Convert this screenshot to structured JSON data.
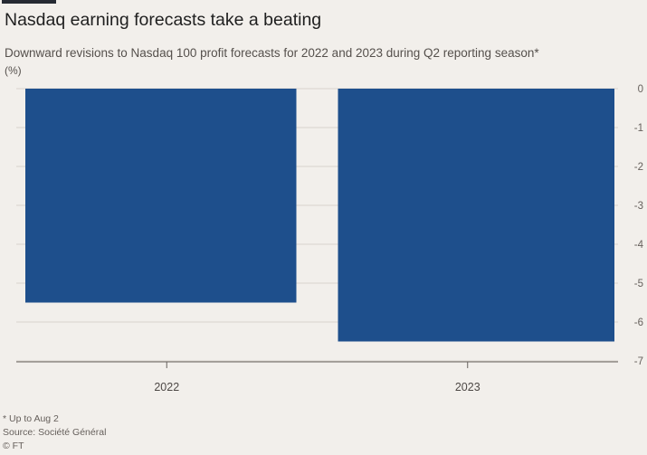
{
  "header": {
    "title": "Nasdaq earning forecasts take a beating",
    "subtitle": "Downward revisions to Nasdaq 100 profit forecasts for 2022 and 2023 during Q2 reporting season*",
    "unit": "(%)"
  },
  "footer": {
    "note": "* Up to Aug 2",
    "source": "Source: Société Général",
    "copyright": "© FT"
  },
  "colors": {
    "bar": "#1e4f8c",
    "grid": "#d8d3cd",
    "axis": "#66605c",
    "background": "#f2efeb"
  },
  "chart_data": {
    "type": "bar",
    "categories": [
      "2022",
      "2023"
    ],
    "values": [
      -5.5,
      -6.5
    ],
    "title": "Nasdaq earning forecasts take a beating",
    "subtitle": "Downward revisions to Nasdaq 100 profit forecasts for 2022 and 2023 during Q2 reporting season*",
    "xlabel": "",
    "ylabel": "(%)",
    "ylim": [
      -7,
      0
    ],
    "yticks": [
      0,
      -1,
      -2,
      -3,
      -4,
      -5,
      -6,
      -7
    ],
    "ytick_labels": [
      "0",
      "-1",
      "-2",
      "-3",
      "-4",
      "-5",
      "-6",
      "-7"
    ],
    "y_axis_side": "right",
    "grid": true
  }
}
